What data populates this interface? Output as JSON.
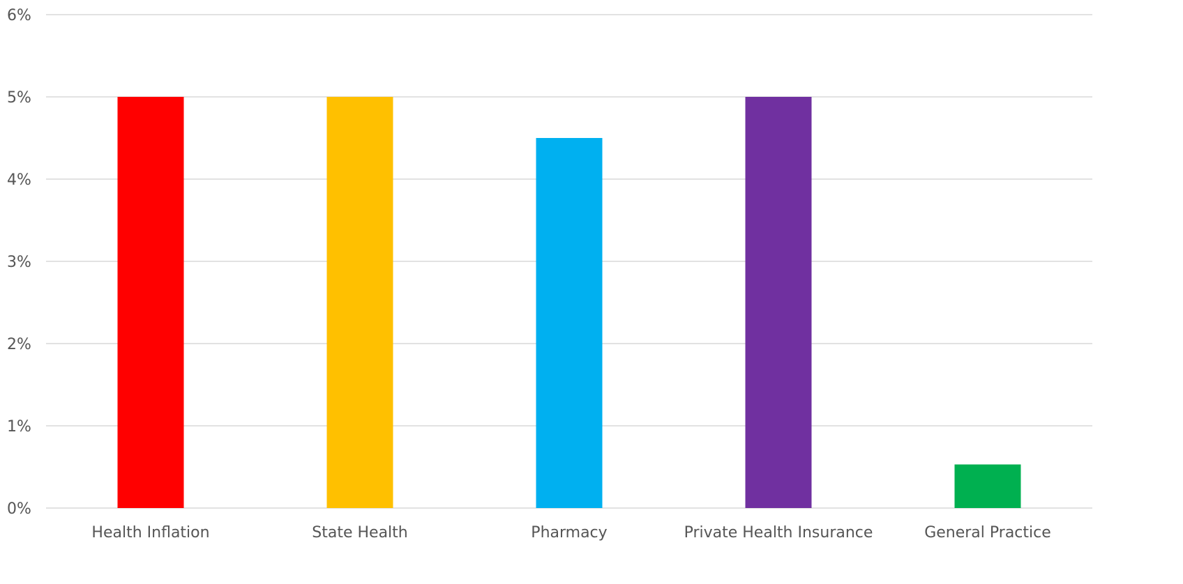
{
  "chart_data": {
    "type": "bar",
    "title": "",
    "xlabel": "",
    "ylabel": "",
    "ylim": [
      0,
      6
    ],
    "y_ticks": [
      0,
      1,
      2,
      3,
      4,
      5,
      6
    ],
    "y_tick_labels": [
      "0%",
      "1%",
      "2%",
      "3%",
      "4%",
      "5%",
      "6%"
    ],
    "categories": [
      "Health Inflation",
      "State Health",
      "Pharmacy",
      "Private Health Insurance",
      "General Practice"
    ],
    "values": [
      5.0,
      5.0,
      4.5,
      5.0,
      0.53
    ],
    "colors": [
      "#FF0000",
      "#FFC000",
      "#00B0F0",
      "#7030A0",
      "#00B050"
    ],
    "grid": true,
    "legend": "none",
    "gridline_color": "#D9D9D9"
  }
}
